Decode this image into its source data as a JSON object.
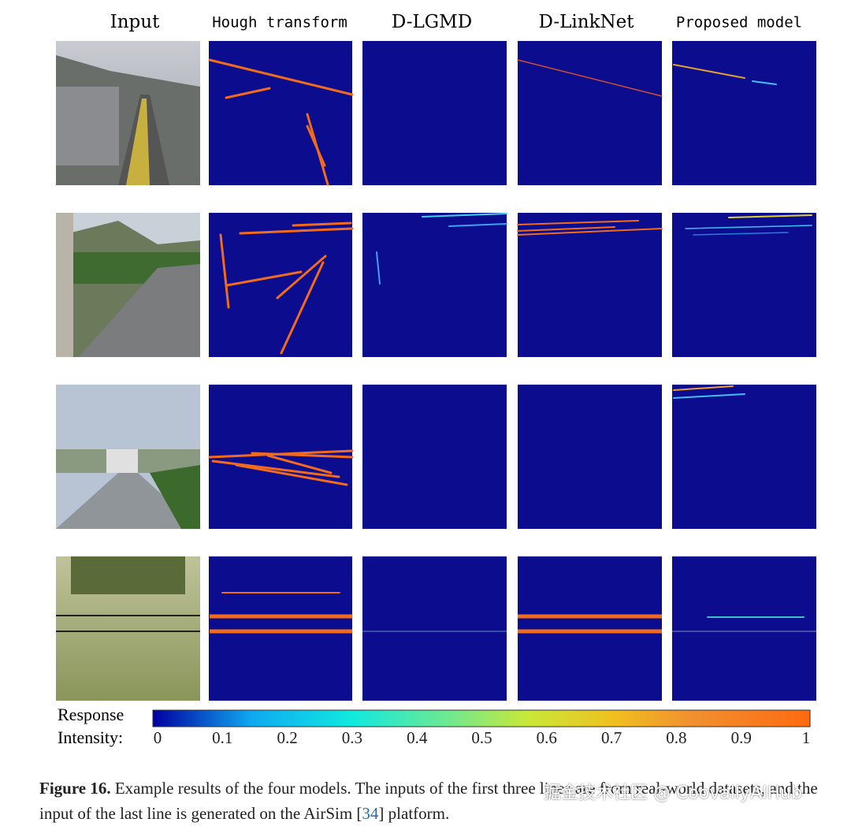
{
  "columns": [
    "Input",
    "Hough transform",
    "D-LGMD",
    "D-LinkNet",
    "Proposed model"
  ],
  "colorbar": {
    "label": [
      "Response",
      "Intensity:"
    ],
    "ticks": [
      0,
      0.1,
      0.2,
      0.3,
      0.4,
      0.5,
      0.6,
      0.7,
      0.8,
      0.9,
      1
    ]
  },
  "caption": {
    "label": "Figure 16.",
    "text": "Example results of the four models. The inputs of the first three lines are from real-world datasets, and the input of the last line is generated on the AirSim [",
    "ref": "34",
    "text_end": "] platform."
  },
  "watermark": "掘金技术社区 @ CoovallyAIHub"
}
